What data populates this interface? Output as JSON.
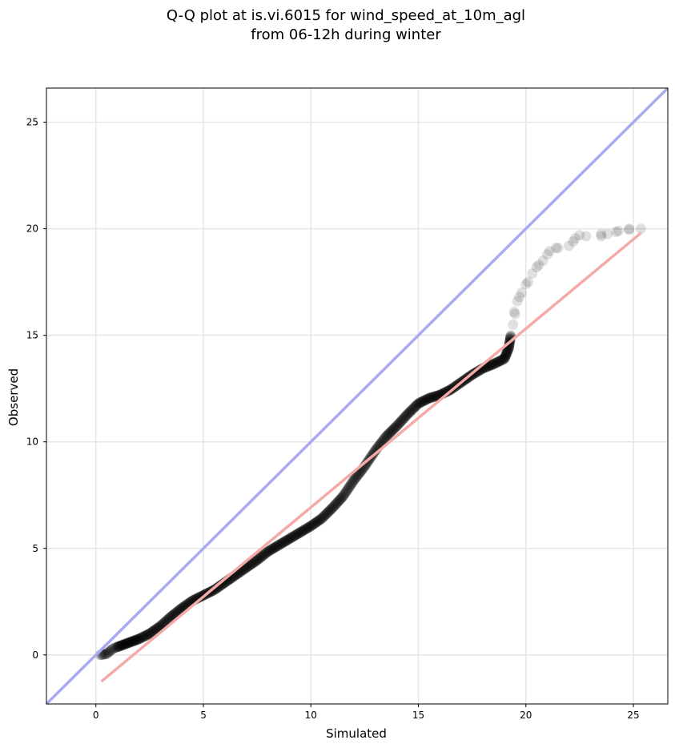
{
  "chart_data": {
    "type": "scatter",
    "title_lines": [
      "Q-Q plot at is.vi.6015 for wind_speed_at_10m_agl",
      "from 06-12h during winter"
    ],
    "xlabel": "Simulated",
    "ylabel": "Observed",
    "xlim": [
      -2.3,
      26.6
    ],
    "ylim": [
      -2.3,
      26.6
    ],
    "xticks": [
      0,
      5,
      10,
      15,
      20,
      25
    ],
    "yticks": [
      0,
      5,
      10,
      15,
      20,
      25
    ],
    "grid": true,
    "reference_line": {
      "kind": "identity",
      "color": "#aaaaf2"
    },
    "fit_line": {
      "x": [
        0.25,
        25.35
      ],
      "y": [
        -1.25,
        19.8
      ],
      "color": "#f5aaaa"
    },
    "point_color": "#000000",
    "quantile_curve": [
      [
        0.2,
        0.0
      ],
      [
        0.5,
        0.05
      ],
      [
        0.8,
        0.3
      ],
      [
        1.2,
        0.45
      ],
      [
        1.6,
        0.6
      ],
      [
        2.0,
        0.75
      ],
      [
        2.5,
        1.0
      ],
      [
        3.0,
        1.35
      ],
      [
        3.5,
        1.8
      ],
      [
        4.0,
        2.2
      ],
      [
        4.5,
        2.55
      ],
      [
        5.0,
        2.8
      ],
      [
        5.5,
        3.05
      ],
      [
        6.0,
        3.4
      ],
      [
        6.5,
        3.75
      ],
      [
        7.0,
        4.1
      ],
      [
        7.5,
        4.45
      ],
      [
        8.0,
        4.85
      ],
      [
        8.5,
        5.15
      ],
      [
        9.0,
        5.45
      ],
      [
        9.5,
        5.75
      ],
      [
        10.0,
        6.05
      ],
      [
        10.5,
        6.4
      ],
      [
        11.0,
        6.9
      ],
      [
        11.5,
        7.45
      ],
      [
        12.0,
        8.2
      ],
      [
        12.5,
        8.85
      ],
      [
        13.0,
        9.6
      ],
      [
        13.5,
        10.25
      ],
      [
        14.0,
        10.75
      ],
      [
        14.5,
        11.3
      ],
      [
        15.0,
        11.8
      ],
      [
        15.5,
        12.05
      ],
      [
        16.0,
        12.2
      ],
      [
        16.5,
        12.45
      ],
      [
        17.0,
        12.8
      ],
      [
        17.5,
        13.15
      ],
      [
        18.0,
        13.45
      ],
      [
        18.5,
        13.65
      ],
      [
        19.0,
        13.9
      ],
      [
        19.2,
        14.4
      ],
      [
        19.3,
        15.0
      ],
      [
        19.4,
        15.5
      ],
      [
        19.5,
        16.0
      ],
      [
        19.7,
        16.8
      ],
      [
        20.0,
        17.4
      ],
      [
        20.5,
        18.2
      ],
      [
        21.0,
        18.8
      ],
      [
        21.5,
        19.1
      ],
      [
        22.2,
        19.4
      ],
      [
        22.8,
        19.65
      ],
      [
        23.5,
        19.75
      ],
      [
        24.2,
        19.85
      ],
      [
        24.8,
        19.95
      ],
      [
        25.3,
        20.0
      ]
    ],
    "sparse_points": [
      [
        19.45,
        16.1
      ],
      [
        19.6,
        16.6
      ],
      [
        19.8,
        17.0
      ],
      [
        20.1,
        17.5
      ],
      [
        20.3,
        17.9
      ],
      [
        20.6,
        18.3
      ],
      [
        20.8,
        18.5
      ],
      [
        21.1,
        18.95
      ],
      [
        21.4,
        19.1
      ],
      [
        22.0,
        19.2
      ],
      [
        22.3,
        19.55
      ],
      [
        22.5,
        19.7
      ],
      [
        23.5,
        19.65
      ],
      [
        23.8,
        19.75
      ],
      [
        24.3,
        19.9
      ],
      [
        24.8,
        20.0
      ],
      [
        25.35,
        20.0
      ]
    ]
  }
}
